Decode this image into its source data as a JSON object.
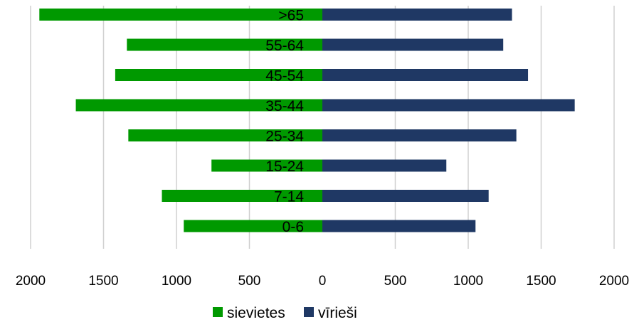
{
  "chart_data": {
    "type": "bar",
    "orientation": "horizontal",
    "layout": "population-pyramid",
    "title": "",
    "xlabel": "",
    "ylabel": "",
    "categories": [
      "0-6",
      "7-14",
      "15-24",
      "25-34",
      "35-44",
      "45-54",
      "55-64",
      ">65"
    ],
    "series": [
      {
        "name": "sievietes",
        "color": "#009900",
        "side": "left",
        "values": [
          950,
          1100,
          760,
          1330,
          1690,
          1420,
          1340,
          1940
        ]
      },
      {
        "name": "vīrieši",
        "color": "#1f3864",
        "side": "right",
        "values": [
          1050,
          1140,
          850,
          1330,
          1730,
          1410,
          1240,
          1300
        ]
      }
    ],
    "xlim": [
      -2000,
      2000
    ],
    "x_ticks": [
      -2000,
      -1500,
      -1000,
      -500,
      0,
      500,
      1000,
      1500,
      2000
    ],
    "x_tick_labels": [
      "2000",
      "1500",
      "1000",
      "500",
      "0",
      "500",
      "1000",
      "1500",
      "2000"
    ],
    "grid": "vertical",
    "grid_color": "#d0d0d0",
    "legend_position": "bottom"
  }
}
